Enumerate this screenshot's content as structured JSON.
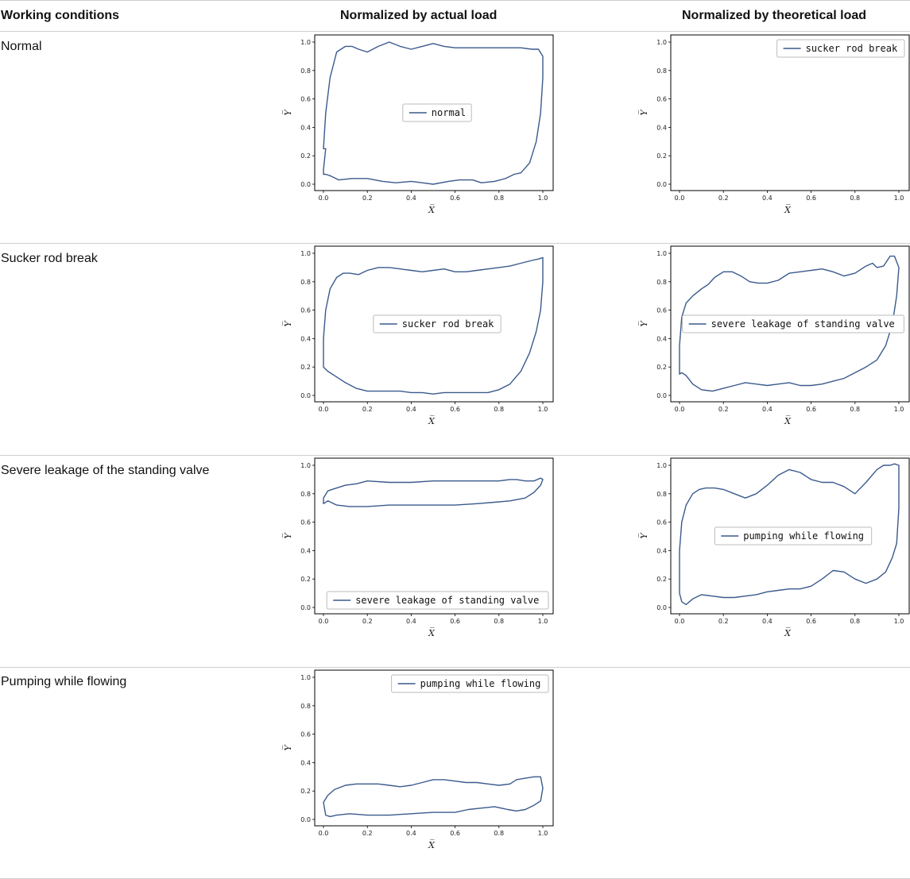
{
  "header": {
    "col1": "Working conditions",
    "col2": "Normalized by actual load",
    "col3": "Normalized by theoretical load"
  },
  "rows": [
    {
      "label": "Normal"
    },
    {
      "label": "Sucker rod break"
    },
    {
      "label": "Severe leakage of the standing valve"
    },
    {
      "label": "Pumping while flowing"
    }
  ],
  "series_color": "#3a5a8c",
  "chart_data": [
    {
      "type": "line",
      "xlabel": "X̅",
      "ylabel": "Y̅",
      "xlim": [
        0,
        1
      ],
      "ylim": [
        0,
        1
      ],
      "legend": "center",
      "series": [
        {
          "name": "normal",
          "x": [
            0,
            0.01,
            0.03,
            0.06,
            0.1,
            0.13,
            0.16,
            0.2,
            0.25,
            0.3,
            0.35,
            0.4,
            0.45,
            0.5,
            0.55,
            0.6,
            0.65,
            0.7,
            0.75,
            0.8,
            0.85,
            0.9,
            0.95,
            0.98,
            1.0,
            1.0,
            0.99,
            0.97,
            0.94,
            0.9,
            0.87,
            0.83,
            0.78,
            0.72,
            0.68,
            0.62,
            0.57,
            0.5,
            0.45,
            0.4,
            0.33,
            0.27,
            0.2,
            0.13,
            0.07,
            0.03,
            0.01,
            0.0,
            0.0,
            0.01
          ],
          "y": [
            0.25,
            0.5,
            0.75,
            0.93,
            0.97,
            0.97,
            0.95,
            0.93,
            0.97,
            1.0,
            0.97,
            0.95,
            0.97,
            0.99,
            0.97,
            0.96,
            0.96,
            0.96,
            0.96,
            0.96,
            0.96,
            0.96,
            0.95,
            0.95,
            0.9,
            0.75,
            0.5,
            0.3,
            0.15,
            0.08,
            0.07,
            0.04,
            0.02,
            0.01,
            0.03,
            0.03,
            0.02,
            0.0,
            0.01,
            0.02,
            0.01,
            0.02,
            0.04,
            0.04,
            0.03,
            0.06,
            0.07,
            0.07,
            0.1,
            0.25
          ]
        }
      ]
    },
    {
      "type": "line",
      "xlabel": "X̅",
      "ylabel": "Y̅",
      "xlim": [
        0,
        1
      ],
      "ylim": [
        0,
        1
      ],
      "legend": "top-right",
      "series": [
        {
          "name": "sucker rod break",
          "x": [],
          "y": []
        }
      ]
    },
    {
      "type": "line",
      "xlabel": "X̅",
      "ylabel": "Y̅",
      "xlim": [
        0,
        1
      ],
      "ylim": [
        0,
        1
      ],
      "legend": "center",
      "series": [
        {
          "name": "sucker rod break",
          "x": [
            0,
            0.01,
            0.03,
            0.06,
            0.09,
            0.12,
            0.16,
            0.2,
            0.25,
            0.3,
            0.35,
            0.4,
            0.45,
            0.5,
            0.55,
            0.6,
            0.65,
            0.7,
            0.75,
            0.8,
            0.85,
            0.9,
            0.95,
            0.98,
            1.0,
            1.0,
            0.99,
            0.97,
            0.94,
            0.9,
            0.85,
            0.8,
            0.75,
            0.7,
            0.65,
            0.6,
            0.55,
            0.5,
            0.45,
            0.4,
            0.35,
            0.3,
            0.25,
            0.2,
            0.15,
            0.1,
            0.05,
            0.02,
            0.0,
            0.0
          ],
          "y": [
            0.4,
            0.6,
            0.75,
            0.83,
            0.86,
            0.86,
            0.85,
            0.88,
            0.9,
            0.9,
            0.89,
            0.88,
            0.87,
            0.88,
            0.89,
            0.87,
            0.87,
            0.88,
            0.89,
            0.9,
            0.91,
            0.93,
            0.95,
            0.96,
            0.97,
            0.8,
            0.6,
            0.45,
            0.3,
            0.17,
            0.08,
            0.04,
            0.02,
            0.02,
            0.02,
            0.02,
            0.02,
            0.01,
            0.02,
            0.02,
            0.03,
            0.03,
            0.03,
            0.03,
            0.05,
            0.09,
            0.14,
            0.17,
            0.2,
            0.4
          ]
        }
      ]
    },
    {
      "type": "line",
      "xlabel": "X̅",
      "ylabel": "Y̅",
      "xlim": [
        0,
        1
      ],
      "ylim": [
        0,
        1
      ],
      "legend": "center",
      "series": [
        {
          "name": "severe leakage of standing valve",
          "x": [
            0,
            0.01,
            0.03,
            0.06,
            0.1,
            0.13,
            0.16,
            0.2,
            0.24,
            0.28,
            0.32,
            0.36,
            0.4,
            0.45,
            0.5,
            0.55,
            0.6,
            0.65,
            0.7,
            0.75,
            0.8,
            0.85,
            0.88,
            0.9,
            0.93,
            0.96,
            0.98,
            1.0,
            0.99,
            0.97,
            0.94,
            0.9,
            0.85,
            0.8,
            0.75,
            0.7,
            0.65,
            0.6,
            0.55,
            0.5,
            0.45,
            0.4,
            0.35,
            0.3,
            0.25,
            0.2,
            0.15,
            0.1,
            0.06,
            0.03,
            0.01,
            0.0,
            0.0
          ],
          "y": [
            0.35,
            0.55,
            0.65,
            0.7,
            0.75,
            0.78,
            0.83,
            0.87,
            0.87,
            0.84,
            0.8,
            0.79,
            0.79,
            0.81,
            0.86,
            0.87,
            0.88,
            0.89,
            0.87,
            0.84,
            0.86,
            0.91,
            0.93,
            0.9,
            0.91,
            0.98,
            0.98,
            0.9,
            0.7,
            0.5,
            0.35,
            0.25,
            0.2,
            0.16,
            0.12,
            0.1,
            0.08,
            0.07,
            0.07,
            0.09,
            0.08,
            0.07,
            0.08,
            0.09,
            0.07,
            0.05,
            0.03,
            0.04,
            0.08,
            0.14,
            0.16,
            0.15,
            0.35
          ]
        }
      ]
    },
    {
      "type": "line",
      "xlabel": "X̅",
      "ylabel": "Y̅",
      "xlim": [
        0,
        1
      ],
      "ylim": [
        0,
        1
      ],
      "legend": "bottom-center",
      "series": [
        {
          "name": "severe leakage of standing valve",
          "x": [
            0,
            0.02,
            0.06,
            0.1,
            0.15,
            0.2,
            0.3,
            0.4,
            0.5,
            0.6,
            0.7,
            0.8,
            0.85,
            0.88,
            0.92,
            0.96,
            0.99,
            1.0,
            0.99,
            0.96,
            0.92,
            0.85,
            0.78,
            0.7,
            0.6,
            0.5,
            0.4,
            0.3,
            0.2,
            0.12,
            0.06,
            0.02,
            0.0,
            0.0
          ],
          "y": [
            0.77,
            0.82,
            0.84,
            0.86,
            0.87,
            0.89,
            0.88,
            0.88,
            0.89,
            0.89,
            0.89,
            0.89,
            0.9,
            0.9,
            0.89,
            0.89,
            0.91,
            0.9,
            0.86,
            0.81,
            0.77,
            0.75,
            0.74,
            0.73,
            0.72,
            0.72,
            0.72,
            0.72,
            0.71,
            0.71,
            0.72,
            0.75,
            0.73,
            0.77
          ]
        }
      ]
    },
    {
      "type": "line",
      "xlabel": "X̅",
      "ylabel": "Y̅",
      "xlim": [
        0,
        1
      ],
      "ylim": [
        0,
        1
      ],
      "legend": "center",
      "series": [
        {
          "name": "pumping while flowing",
          "x": [
            0,
            0.01,
            0.03,
            0.06,
            0.09,
            0.12,
            0.16,
            0.2,
            0.25,
            0.3,
            0.35,
            0.4,
            0.45,
            0.5,
            0.55,
            0.6,
            0.65,
            0.7,
            0.75,
            0.8,
            0.85,
            0.9,
            0.93,
            0.96,
            0.98,
            1.0,
            1.0,
            0.99,
            0.97,
            0.94,
            0.9,
            0.85,
            0.8,
            0.75,
            0.7,
            0.65,
            0.6,
            0.55,
            0.5,
            0.45,
            0.4,
            0.35,
            0.3,
            0.25,
            0.2,
            0.15,
            0.1,
            0.06,
            0.03,
            0.01,
            0.0,
            0.0
          ],
          "y": [
            0.4,
            0.6,
            0.72,
            0.8,
            0.83,
            0.84,
            0.84,
            0.83,
            0.8,
            0.77,
            0.8,
            0.86,
            0.93,
            0.97,
            0.95,
            0.9,
            0.88,
            0.88,
            0.85,
            0.8,
            0.88,
            0.97,
            1.0,
            1.0,
            1.01,
            1.0,
            0.7,
            0.45,
            0.35,
            0.25,
            0.2,
            0.17,
            0.2,
            0.25,
            0.26,
            0.2,
            0.15,
            0.13,
            0.13,
            0.12,
            0.11,
            0.09,
            0.08,
            0.07,
            0.07,
            0.08,
            0.09,
            0.06,
            0.02,
            0.04,
            0.1,
            0.4
          ]
        }
      ]
    },
    {
      "type": "line",
      "xlabel": "X̅",
      "ylabel": "Y̅",
      "xlim": [
        0,
        1
      ],
      "ylim": [
        0,
        1
      ],
      "legend": "top-right",
      "series": [
        {
          "name": "pumping while flowing",
          "x": [
            0,
            0.02,
            0.05,
            0.1,
            0.15,
            0.2,
            0.25,
            0.3,
            0.35,
            0.4,
            0.45,
            0.5,
            0.55,
            0.6,
            0.65,
            0.7,
            0.75,
            0.8,
            0.85,
            0.88,
            0.92,
            0.96,
            0.99,
            1.0,
            0.99,
            0.96,
            0.92,
            0.88,
            0.84,
            0.78,
            0.72,
            0.66,
            0.6,
            0.5,
            0.4,
            0.3,
            0.2,
            0.12,
            0.06,
            0.03,
            0.01,
            0.0
          ],
          "y": [
            0.12,
            0.17,
            0.21,
            0.24,
            0.25,
            0.25,
            0.25,
            0.24,
            0.23,
            0.24,
            0.26,
            0.28,
            0.28,
            0.27,
            0.26,
            0.26,
            0.25,
            0.24,
            0.25,
            0.28,
            0.29,
            0.3,
            0.3,
            0.22,
            0.13,
            0.1,
            0.07,
            0.06,
            0.07,
            0.09,
            0.08,
            0.07,
            0.05,
            0.05,
            0.04,
            0.03,
            0.03,
            0.04,
            0.03,
            0.02,
            0.03,
            0.12
          ]
        }
      ]
    }
  ]
}
